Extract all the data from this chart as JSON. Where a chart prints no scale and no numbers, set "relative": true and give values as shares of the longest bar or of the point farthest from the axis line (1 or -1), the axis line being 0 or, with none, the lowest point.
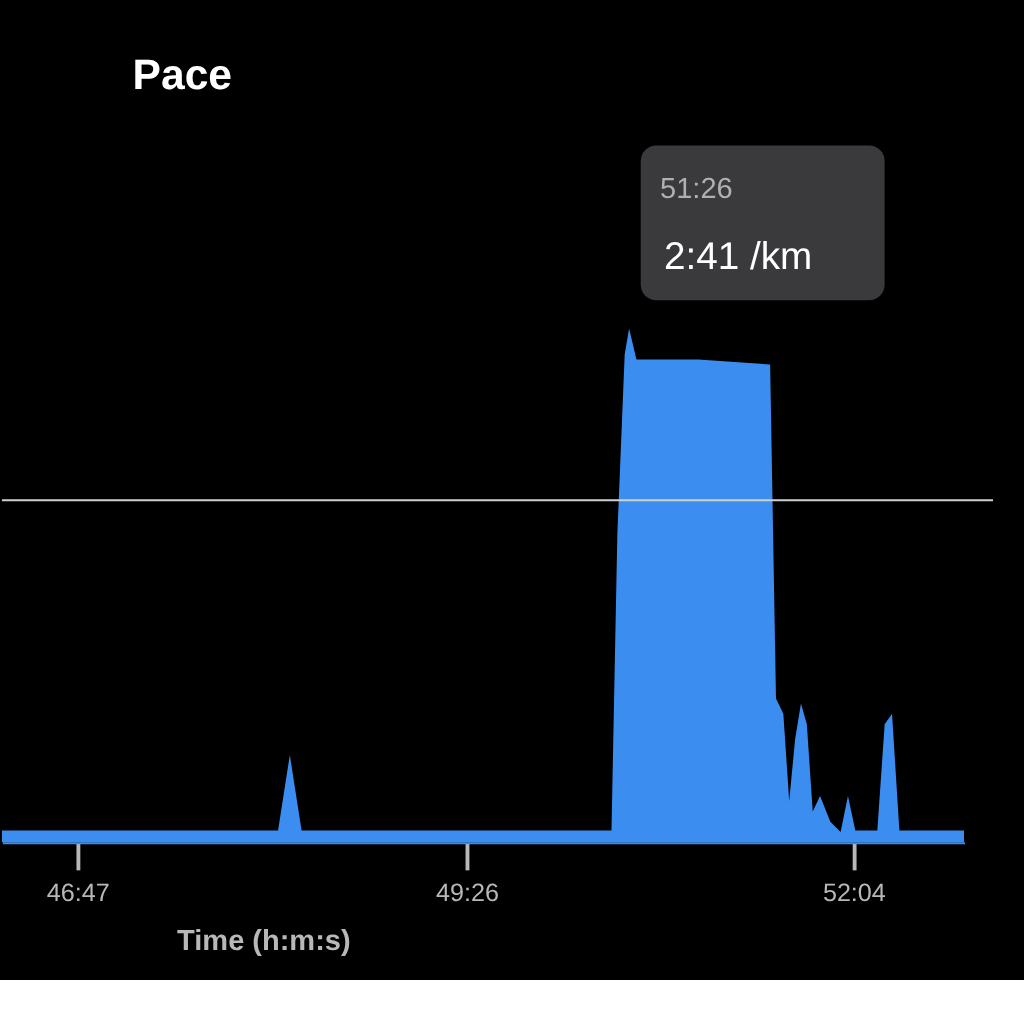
{
  "chart_data": {
    "type": "area",
    "title": "Pace",
    "xlabel": "Time (h:m:s)",
    "relative": true,
    "grid": false,
    "legend": false,
    "xlim": [
      46.27,
      52.82
    ],
    "xticks": [
      {
        "value": 46.783,
        "label": "46:47"
      },
      {
        "value": 49.433,
        "label": "49:26"
      },
      {
        "value": 52.067,
        "label": "52:04"
      }
    ],
    "x": [
      46.27,
      48.15,
      48.23,
      48.31,
      50.42,
      50.46,
      50.51,
      50.54,
      50.59,
      51.01,
      51.5,
      51.54,
      51.59,
      51.63,
      51.67,
      51.71,
      51.75,
      51.79,
      51.84,
      51.91,
      51.98,
      52.03,
      52.08,
      52.23,
      52.28,
      52.33,
      52.38,
      52.82
    ],
    "series": [
      {
        "color": "#3b8ef0",
        "values": [
          0.023,
          0.023,
          0.17,
          0.023,
          0.023,
          0.6,
          0.95,
          1.0,
          0.94,
          0.94,
          0.93,
          0.28,
          0.25,
          0.08,
          0.2,
          0.27,
          0.23,
          0.06,
          0.09,
          0.04,
          0.02,
          0.09,
          0.023,
          0.023,
          0.23,
          0.25,
          0.023,
          0.023
        ]
      }
    ],
    "ref_lines": [
      {
        "axis": "y",
        "value": 0.666,
        "color": "#d0d0d0"
      }
    ],
    "annotations": [
      "51:26",
      "2:41 /km"
    ]
  }
}
